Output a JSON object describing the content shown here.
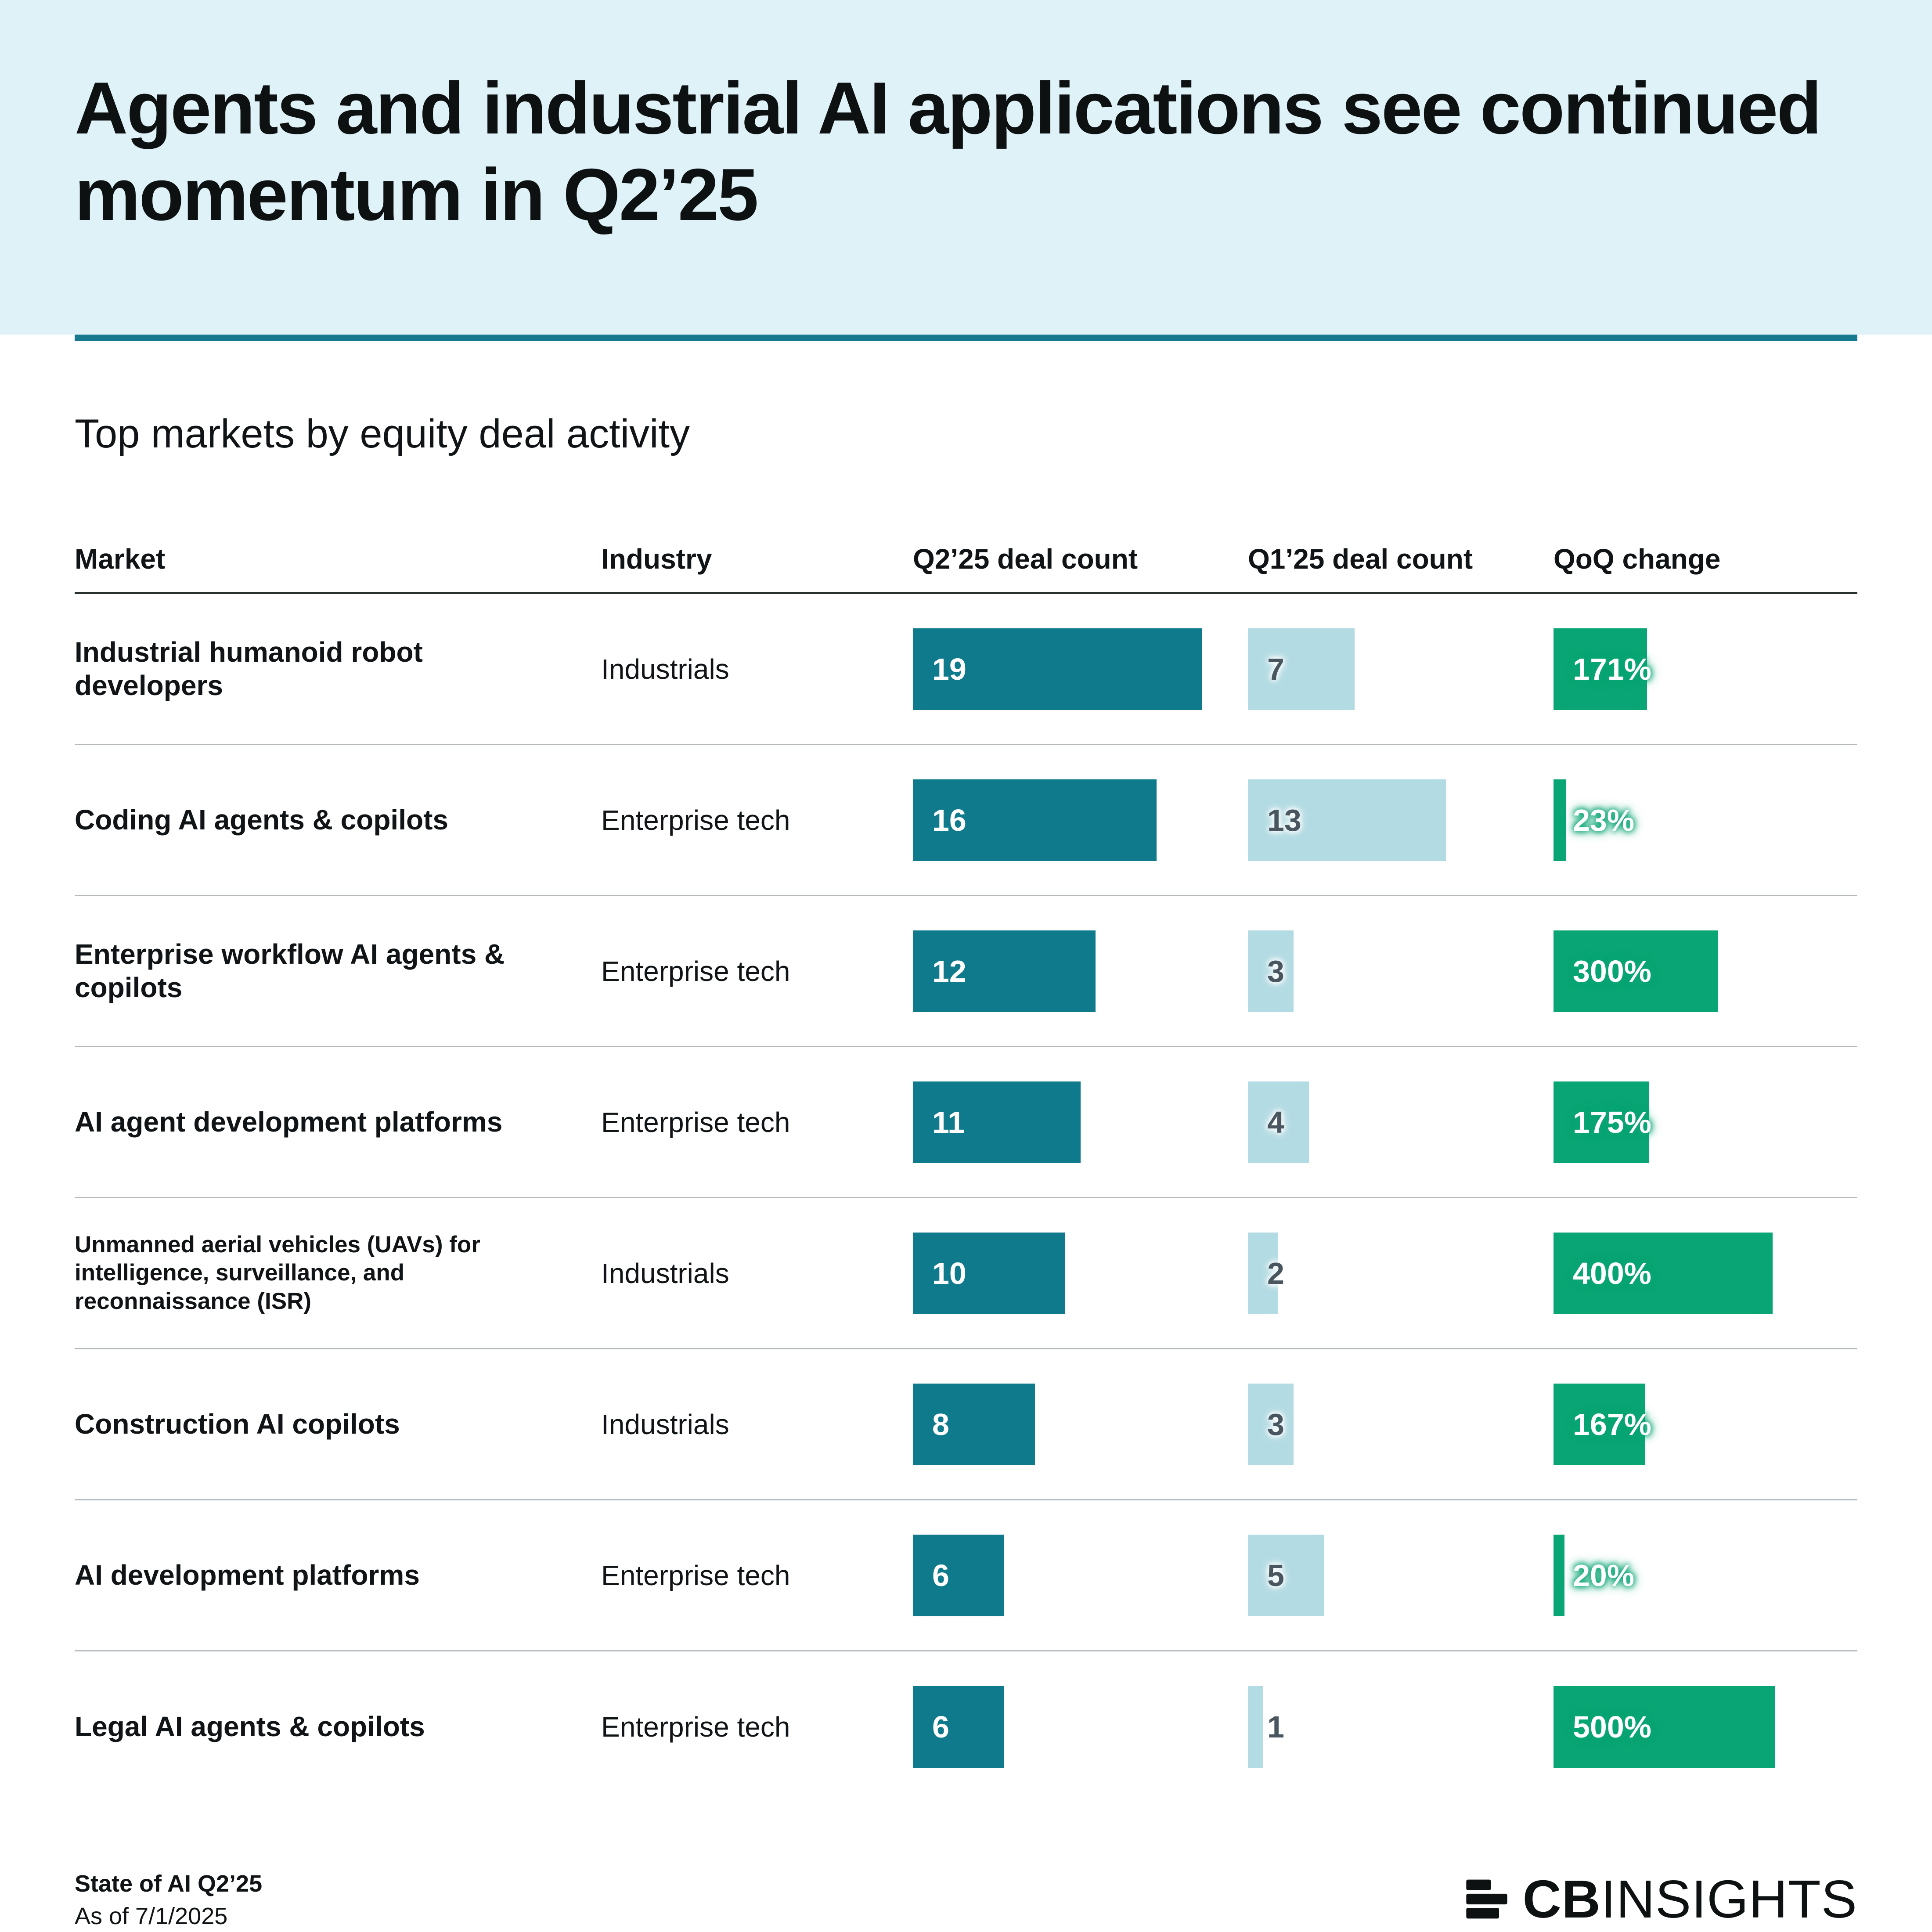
{
  "header": {
    "title": "Agents and industrial AI applications see continued momentum in Q2’25"
  },
  "subtitle": "Top markets by equity deal activity",
  "table": {
    "columns": [
      "Market",
      "Industry",
      "Q2’25 deal count",
      "Q1’25 deal count",
      "QoQ change"
    ],
    "rows": [
      {
        "market": "Industrial humanoid robot developers",
        "industry": "Industrials",
        "q2_deals": 19,
        "q1_deals": 7,
        "qoq_pct": 171,
        "qoq_label": "171%"
      },
      {
        "market": "Coding AI agents & copilots",
        "industry": "Enterprise tech",
        "q2_deals": 16,
        "q1_deals": 13,
        "qoq_pct": 23,
        "qoq_label": "23%"
      },
      {
        "market": "Enterprise workflow AI agents & copilots",
        "industry": "Enterprise tech",
        "q2_deals": 12,
        "q1_deals": 3,
        "qoq_pct": 300,
        "qoq_label": "300%"
      },
      {
        "market": "AI agent development platforms",
        "industry": "Enterprise tech",
        "q2_deals": 11,
        "q1_deals": 4,
        "qoq_pct": 175,
        "qoq_label": "175%"
      },
      {
        "market": "Unmanned aerial vehicles (UAVs) for intelligence, surveillance, and reconnaissance (ISR)",
        "industry": "Industrials",
        "q2_deals": 10,
        "q1_deals": 2,
        "qoq_pct": 400,
        "qoq_label": "400%"
      },
      {
        "market": "Construction AI copilots",
        "industry": "Industrials",
        "q2_deals": 8,
        "q1_deals": 3,
        "qoq_pct": 167,
        "qoq_label": "167%"
      },
      {
        "market": "AI development platforms",
        "industry": "Enterprise tech",
        "q2_deals": 6,
        "q1_deals": 5,
        "qoq_pct": 20,
        "qoq_label": "20%"
      },
      {
        "market": "Legal AI agents & copilots",
        "industry": "Enterprise tech",
        "q2_deals": 6,
        "q1_deals": 1,
        "qoq_pct": 500,
        "qoq_label": "500%"
      }
    ]
  },
  "footer": {
    "source_line1": "State of AI Q2’25",
    "source_line2": "As of 7/1/2025",
    "logo": {
      "cb": "CB",
      "insights": "INSIGHTS"
    }
  },
  "colors": {
    "header_bg": "#dff2f8",
    "divider_teal": "#17798e",
    "q2_bar_teal": "#0e7a8c",
    "q1_bar_light_blue": "#b3dbe3",
    "qoq_bar_green": "#0aa574",
    "q1_number_slate": "#49565f"
  },
  "chart_data": {
    "type": "bar",
    "title": "Top markets by equity deal activity",
    "categories": [
      "Industrial humanoid robot developers",
      "Coding AI agents & copilots",
      "Enterprise workflow AI agents & copilots",
      "AI agent development platforms",
      "Unmanned aerial vehicles (UAVs) for intelligence, surveillance, and reconnaissance (ISR)",
      "Construction AI copilots",
      "AI development platforms",
      "Legal AI agents & copilots"
    ],
    "series": [
      {
        "name": "Q2’25 deal count",
        "values": [
          19,
          16,
          12,
          11,
          10,
          8,
          6,
          6
        ]
      },
      {
        "name": "Q1’25 deal count",
        "values": [
          7,
          13,
          3,
          4,
          2,
          3,
          5,
          1
        ]
      },
      {
        "name": "QoQ change (%)",
        "values": [
          171,
          23,
          300,
          175,
          400,
          167,
          20,
          500
        ]
      }
    ],
    "industries": [
      "Industrials",
      "Enterprise tech",
      "Enterprise tech",
      "Enterprise tech",
      "Industrials",
      "Industrials",
      "Enterprise tech",
      "Enterprise tech"
    ],
    "orientation": "horizontal",
    "grid": false,
    "legend": "none"
  }
}
